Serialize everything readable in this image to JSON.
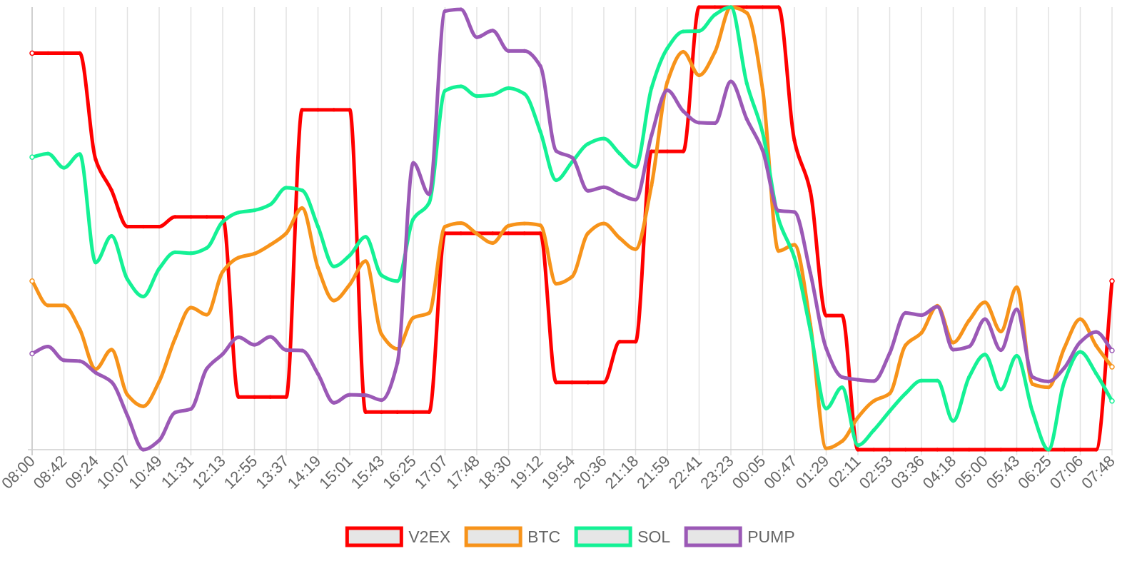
{
  "chart_data": {
    "type": "line",
    "title": "",
    "xlabel": "",
    "ylabel": "",
    "ylim": [
      0,
      100
    ],
    "grid": "vertical",
    "legend_position": "bottom",
    "x": [
      "08:00",
      "08:21",
      "08:42",
      "09:03",
      "09:24",
      "09:45",
      "10:07",
      "10:28",
      "10:49",
      "11:10",
      "11:31",
      "11:52",
      "12:13",
      "12:34",
      "12:55",
      "13:16",
      "13:37",
      "13:58",
      "14:19",
      "14:40",
      "15:01",
      "15:22",
      "15:43",
      "16:04",
      "16:25",
      "16:46",
      "17:07",
      "17:27",
      "17:48",
      "18:09",
      "18:30",
      "18:51",
      "19:12",
      "19:33",
      "19:54",
      "20:15",
      "20:36",
      "20:57",
      "21:18",
      "21:38",
      "21:59",
      "22:20",
      "22:41",
      "23:02",
      "23:23",
      "23:44",
      "00:05",
      "00:26",
      "00:47",
      "01:08",
      "01:29",
      "01:50",
      "02:11",
      "02:32",
      "02:53",
      "03:14",
      "03:36",
      "03:57",
      "04:18",
      "04:39",
      "05:00",
      "05:21",
      "05:43",
      "06:04",
      "06:25",
      "06:45",
      "07:06",
      "07:27",
      "07:48"
    ],
    "x_tick_labels": [
      "08:00",
      "08:42",
      "09:24",
      "10:07",
      "10:49",
      "11:31",
      "12:13",
      "12:55",
      "13:37",
      "14:19",
      "15:01",
      "15:43",
      "16:25",
      "17:07",
      "17:48",
      "18:30",
      "19:12",
      "19:54",
      "20:36",
      "21:18",
      "21:59",
      "22:41",
      "23:23",
      "00:05",
      "00:47",
      "01:29",
      "02:11",
      "02:53",
      "03:36",
      "04:18",
      "05:00",
      "05:43",
      "06:25",
      "07:06",
      "07:48"
    ],
    "series": [
      {
        "name": "V2EX",
        "color": "#ff0000",
        "values": [
          89.6,
          89.6,
          89.6,
          89.6,
          65.6,
          58.6,
          50.4,
          50.4,
          50.4,
          52.6,
          52.6,
          52.6,
          52.6,
          11.9,
          11.9,
          11.9,
          11.9,
          76.8,
          76.8,
          76.8,
          76.8,
          8.5,
          8.5,
          8.5,
          8.5,
          8.5,
          48.9,
          48.9,
          48.9,
          48.9,
          48.9,
          48.9,
          48.9,
          15.2,
          15.2,
          15.2,
          15.2,
          24.4,
          24.4,
          67.4,
          67.4,
          67.4,
          100,
          100,
          100,
          100,
          100,
          100,
          69.9,
          58.4,
          30.3,
          30.3,
          0,
          0,
          0,
          0,
          0,
          0,
          0,
          0,
          0,
          0,
          0,
          0,
          0,
          0,
          0,
          0,
          38.1
        ]
      },
      {
        "name": "BTC",
        "color": "#f7931a",
        "values": [
          38.1,
          32.6,
          32.6,
          27.2,
          18.2,
          22.6,
          12.4,
          9.8,
          15.4,
          25.1,
          32.1,
          30.5,
          40.2,
          43.4,
          44.3,
          46.3,
          48.9,
          54.6,
          41.1,
          33.7,
          37.3,
          42.6,
          26.1,
          22.8,
          29.8,
          30.9,
          50.4,
          51.2,
          48.8,
          46.7,
          50.6,
          51.1,
          50.7,
          37.5,
          39.1,
          48.9,
          51.1,
          47.8,
          45.3,
          59.7,
          83.1,
          89.9,
          84.6,
          89.9,
          100,
          98.7,
          81.4,
          44.9,
          46.3,
          28.4,
          0.3,
          1.9,
          7.3,
          11,
          12.7,
          23.6,
          26.4,
          32.5,
          24.2,
          29.2,
          33.3,
          26.7,
          36.7,
          14.8,
          14.1,
          23,
          29.5,
          23.5,
          18.7
        ]
      },
      {
        "name": "SOL",
        "color": "#14f195",
        "values": [
          66.1,
          66.9,
          63.7,
          66.8,
          42.3,
          48.3,
          38.5,
          34.6,
          40.9,
          44.6,
          44.4,
          45.6,
          51.5,
          53.6,
          54.1,
          55.4,
          59.2,
          58.6,
          50.4,
          41.4,
          43.9,
          48.1,
          39.4,
          38.1,
          52.1,
          55.8,
          81.1,
          82.1,
          79.9,
          80.2,
          81.7,
          80.4,
          71.9,
          60.9,
          65,
          69.1,
          70.3,
          66.9,
          63.9,
          81.7,
          90.7,
          94.5,
          94.6,
          98.3,
          100,
          82.8,
          71.6,
          52.1,
          43.4,
          27.1,
          9.3,
          14.1,
          1,
          4.4,
          8.7,
          12.7,
          15.6,
          15.6,
          6.5,
          16.4,
          21.5,
          13.6,
          21.2,
          8.5,
          0,
          15.4,
          22.1,
          17.2,
          11
        ]
      },
      {
        "name": "PUMP",
        "color": "#9b59b6",
        "values": [
          21.7,
          23.3,
          20.2,
          20,
          17.4,
          15.3,
          7.7,
          0,
          2.1,
          8.4,
          9.2,
          18.3,
          21.6,
          25.4,
          23.7,
          25.5,
          22.5,
          22.4,
          17.1,
          10.6,
          12.4,
          12.3,
          11.2,
          19.6,
          64.8,
          57.7,
          99.1,
          99.5,
          93.2,
          94.7,
          90.1,
          90.1,
          86.7,
          67.5,
          66,
          58.5,
          59.3,
          57.7,
          56.5,
          71,
          81.2,
          76.5,
          73.9,
          73.8,
          83.2,
          74.7,
          67.6,
          54,
          53.7,
          40,
          22.9,
          16.4,
          15.8,
          15.5,
          21.8,
          30.9,
          30.4,
          32.3,
          22.6,
          23.3,
          29.5,
          22.5,
          31.7,
          16.4,
          15.4,
          18.5,
          24.3,
          26.6,
          22.4
        ]
      }
    ]
  }
}
